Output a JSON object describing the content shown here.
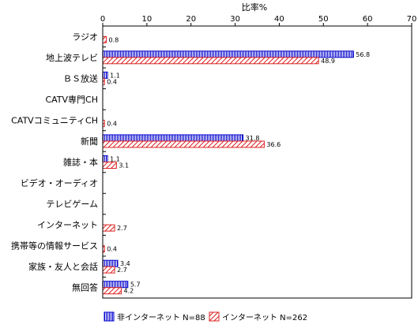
{
  "chart_data": {
    "type": "bar",
    "orientation": "horizontal",
    "title": "",
    "xlabel": "比率%",
    "ylabel": "",
    "xlim": [
      0,
      70
    ],
    "x_ticks": [
      0,
      10,
      20,
      30,
      40,
      50,
      60,
      70
    ],
    "grid": false,
    "legend_position": "bottom",
    "categories": [
      "ラジオ",
      "地上波テレビ",
      "ＢＳ放送",
      "CATV専門CH",
      "CATVコミュニティCH",
      "新聞",
      "雑誌・本",
      "ビデオ・オーディオ",
      "テレビゲーム",
      "インターネット",
      "携帯等の情報サービス",
      "家族・友人と会話",
      "無回答"
    ],
    "series": [
      {
        "name": "非インターネット N=88",
        "color": "#0000cc",
        "pattern": "vertical-stripes",
        "values": [
          null,
          56.8,
          1.1,
          null,
          null,
          31.8,
          1.1,
          null,
          null,
          null,
          null,
          3.4,
          5.7
        ],
        "labels": [
          "",
          "56.8",
          "1.1",
          "",
          "",
          "31.8",
          "1.1",
          "",
          "",
          "",
          "",
          "3.4",
          "5.7"
        ]
      },
      {
        "name": "インターネット N=262",
        "color": "#dd2222",
        "pattern": "diagonal-hatch",
        "values": [
          0.8,
          48.9,
          0.4,
          null,
          0.4,
          36.6,
          3.1,
          null,
          null,
          2.7,
          0.4,
          2.7,
          4.2
        ],
        "labels": [
          "0.8",
          "48.9",
          "0.4",
          "",
          "0.4",
          "36.6",
          "3.1",
          "",
          "",
          "2.7",
          "0.4",
          "2.7",
          "4.2"
        ]
      }
    ]
  }
}
